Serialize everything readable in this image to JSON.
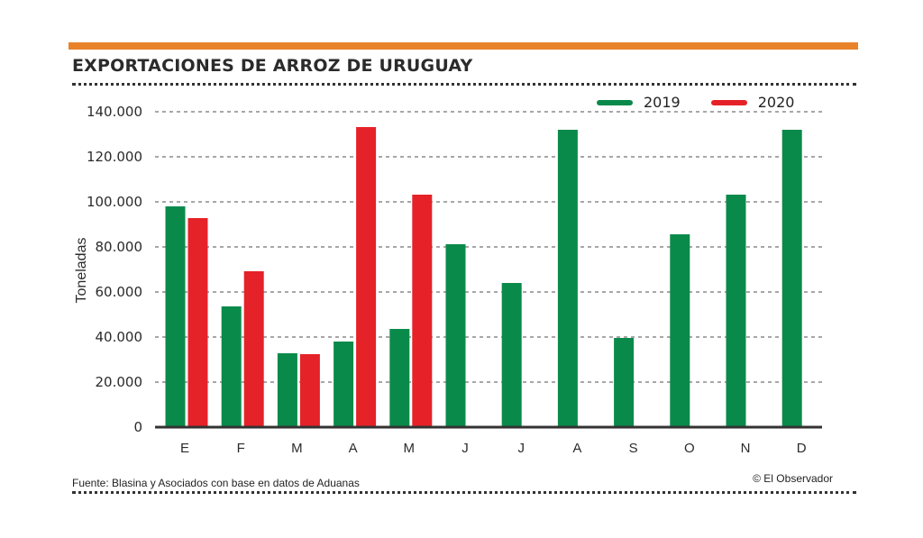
{
  "header": {
    "title": "EXPORTACIONES DE ARROZ DE URUGUAY",
    "accent_color": "#e8832a"
  },
  "footer": {
    "source": "Fuente: Blasina y Asociados con base en datos de Aduanas",
    "credit": "© El Observador"
  },
  "chart_data": {
    "type": "bar",
    "title": "EXPORTACIONES DE ARROZ DE URUGUAY",
    "xlabel": "",
    "ylabel": "Toneladas",
    "ylim": [
      0,
      140000
    ],
    "yticks": [
      0,
      20000,
      40000,
      60000,
      80000,
      100000,
      120000,
      140000
    ],
    "ytick_labels": [
      "0",
      "20.000",
      "40.000",
      "60.000",
      "80.000",
      "100.000",
      "120.000",
      "140.000"
    ],
    "grid": true,
    "legend_position": "top-right",
    "categories": [
      "E",
      "F",
      "M",
      "A",
      "M",
      "J",
      "J",
      "A",
      "S",
      "O",
      "N",
      "D"
    ],
    "series": [
      {
        "name": "2019",
        "color": "#0a8a4a",
        "values": [
          98000,
          53600,
          32800,
          38000,
          43600,
          81200,
          64000,
          132000,
          39600,
          85600,
          103200,
          132000
        ]
      },
      {
        "name": "2020",
        "color": "#e52228",
        "values": [
          92800,
          69200,
          32400,
          133200,
          103200,
          null,
          null,
          null,
          null,
          null,
          null,
          null
        ]
      }
    ]
  }
}
